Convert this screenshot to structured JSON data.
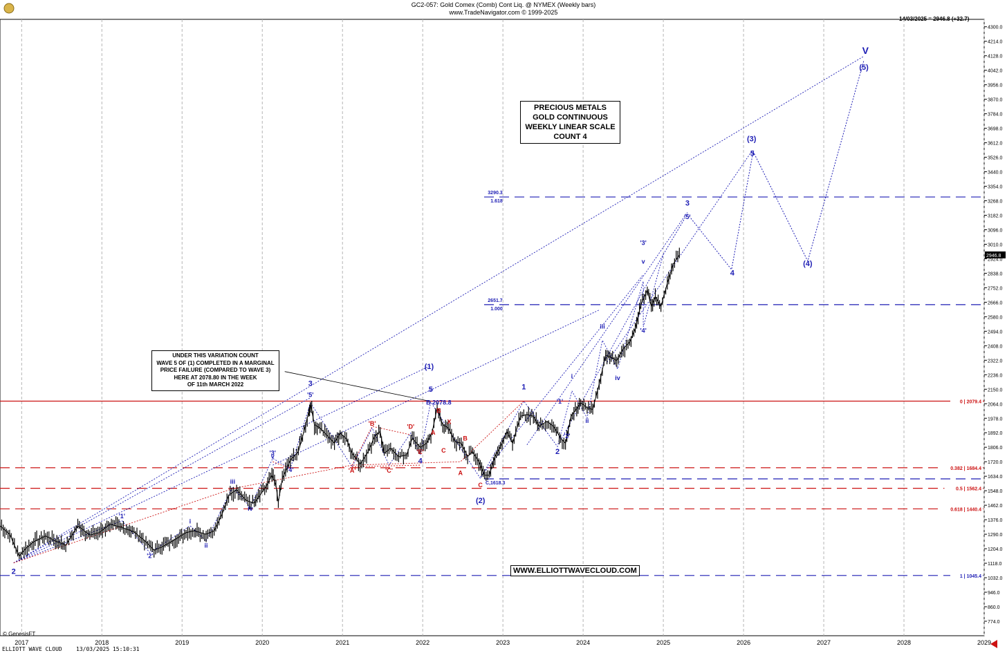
{
  "header": {
    "title": "GC2-057:  Gold Comex (Comb) Cont Liq. @ NYMEX  (Weekly bars)",
    "source": "www.TradeNavigator.com © 1999-2025",
    "last_price_note": "14/03/2025 = 2946.8 (+32.7)"
  },
  "notes": {
    "main_box": [
      "PRECIOUS METALS",
      "GOLD CONTINUOUS",
      "WEEKLY LINEAR SCALE",
      "COUNT 4"
    ],
    "variation_box": [
      "UNDER THIS VARIATION COUNT",
      "WAVE 5 OF (1) COMPLETED IN A MARGINAL",
      "PRICE FAILURE (COMPARED TO WAVE 3)",
      "HERE AT 2078.80 IN THE WEEK",
      "OF 11th MARCH 2022"
    ],
    "website": "WWW.ELLIOTTWAVECLOUD.COM"
  },
  "footer": {
    "credit": "© GenesisFT",
    "brand": "ELLIOTT WAVE CLOUD",
    "timestamp": "13/03/2025 15:10:31"
  },
  "chart_data": {
    "type": "line",
    "title": "GC2-057:  Gold Comex (Comb) Cont Liq. @ NYMEX  (Weekly bars)",
    "x_range": [
      2016.73,
      2029.0
    ],
    "y_range": [
      688.0,
      4344.0
    ],
    "x_ticks": [
      "2017",
      "2018",
      "2019",
      "2020",
      "2021",
      "2022",
      "2023",
      "2024",
      "2025",
      "2026",
      "2027",
      "2028",
      "2029"
    ],
    "y_ticks": [
      4300.0,
      4214.0,
      4128.0,
      4042.0,
      3956.0,
      3870.0,
      3784.0,
      3698.0,
      3612.0,
      3526.0,
      3440.0,
      3354.0,
      3268.0,
      3182.0,
      3096.0,
      3010.0,
      2924.0,
      2838.0,
      2752.0,
      2666.0,
      2580.0,
      2494.0,
      2408.0,
      2322.0,
      2236.0,
      2150.0,
      2064.0,
      1978.0,
      1892.0,
      1806.0,
      1720.0,
      1634.0,
      1548.0,
      1462.0,
      1376.0,
      1290.0,
      1204.0,
      1118.0,
      1032.0,
      946.0,
      860.0,
      774.0
    ],
    "colors": {
      "price": "#000000",
      "blue": "#1c1cb4",
      "red": "#cc1111",
      "grid": "#b4b4b4"
    },
    "price_series": {
      "name": "Gold weekly close (approx.)",
      "points": [
        [
          2016.73,
          1340
        ],
        [
          2016.85,
          1290
        ],
        [
          2016.97,
          1160
        ],
        [
          2017.05,
          1205
        ],
        [
          2017.15,
          1245
        ],
        [
          2017.3,
          1280
        ],
        [
          2017.42,
          1250
        ],
        [
          2017.55,
          1225
        ],
        [
          2017.7,
          1340
        ],
        [
          2017.85,
          1285
        ],
        [
          2017.97,
          1300
        ],
        [
          2018.1,
          1350
        ],
        [
          2018.25,
          1330
        ],
        [
          2018.4,
          1305
        ],
        [
          2018.55,
          1245
        ],
        [
          2018.65,
          1195
        ],
        [
          2018.75,
          1215
        ],
        [
          2018.9,
          1255
        ],
        [
          2019.05,
          1300
        ],
        [
          2019.15,
          1310
        ],
        [
          2019.3,
          1290
        ],
        [
          2019.4,
          1310
        ],
        [
          2019.5,
          1410
        ],
        [
          2019.58,
          1520
        ],
        [
          2019.68,
          1555
        ],
        [
          2019.8,
          1490
        ],
        [
          2019.9,
          1475
        ],
        [
          2019.97,
          1520
        ],
        [
          2020.05,
          1575
        ],
        [
          2020.12,
          1640
        ],
        [
          2020.17,
          1580
        ],
        [
          2020.2,
          1480
        ],
        [
          2020.25,
          1620
        ],
        [
          2020.35,
          1730
        ],
        [
          2020.45,
          1780
        ],
        [
          2020.52,
          1900
        ],
        [
          2020.58,
          2020
        ],
        [
          2020.6,
          2065
        ],
        [
          2020.65,
          1940
        ],
        [
          2020.72,
          1920
        ],
        [
          2020.8,
          1880
        ],
        [
          2020.9,
          1830
        ],
        [
          2020.97,
          1890
        ],
        [
          2021.05,
          1855
        ],
        [
          2021.12,
          1770
        ],
        [
          2021.22,
          1705
        ],
        [
          2021.32,
          1780
        ],
        [
          2021.4,
          1870
        ],
        [
          2021.47,
          1900
        ],
        [
          2021.52,
          1770
        ],
        [
          2021.6,
          1800
        ],
        [
          2021.7,
          1750
        ],
        [
          2021.8,
          1760
        ],
        [
          2021.87,
          1860
        ],
        [
          2021.97,
          1805
        ],
        [
          2022.05,
          1830
        ],
        [
          2022.12,
          1900
        ],
        [
          2022.18,
          2040
        ],
        [
          2022.25,
          1940
        ],
        [
          2022.32,
          1920
        ],
        [
          2022.4,
          1840
        ],
        [
          2022.48,
          1830
        ],
        [
          2022.56,
          1750
        ],
        [
          2022.62,
          1780
        ],
        [
          2022.7,
          1720
        ],
        [
          2022.77,
          1640
        ],
        [
          2022.83,
          1640
        ],
        [
          2022.9,
          1750
        ],
        [
          2022.97,
          1810
        ],
        [
          2023.05,
          1900
        ],
        [
          2023.12,
          1830
        ],
        [
          2023.22,
          1990
        ],
        [
          2023.3,
          2000
        ],
        [
          2023.38,
          1990
        ],
        [
          2023.45,
          1930
        ],
        [
          2023.55,
          1960
        ],
        [
          2023.63,
          1930
        ],
        [
          2023.72,
          1860
        ],
        [
          2023.78,
          1830
        ],
        [
          2023.85,
          1990
        ],
        [
          2023.92,
          2035
        ],
        [
          2023.97,
          2070
        ],
        [
          2024.05,
          2040
        ],
        [
          2024.12,
          2030
        ],
        [
          2024.2,
          2180
        ],
        [
          2024.28,
          2350
        ],
        [
          2024.35,
          2340
        ],
        [
          2024.42,
          2320
        ],
        [
          2024.5,
          2390
        ],
        [
          2024.58,
          2430
        ],
        [
          2024.65,
          2510
        ],
        [
          2024.72,
          2650
        ],
        [
          2024.8,
          2740
        ],
        [
          2024.85,
          2640
        ],
        [
          2024.9,
          2700
        ],
        [
          2024.97,
          2640
        ],
        [
          2025.05,
          2780
        ],
        [
          2025.12,
          2890
        ],
        [
          2025.2,
          2946.8
        ]
      ]
    },
    "horizontal_levels": [
      {
        "value": 2079.4,
        "label": "0 | 2079.4",
        "color": "red"
      },
      {
        "value": 1684.4,
        "label": "0.382 | 1684.4",
        "color": "red"
      },
      {
        "value": 1562.4,
        "label": "0.5 | 1562.4",
        "color": "red"
      },
      {
        "value": 1440.4,
        "label": "0.618 | 1440.4",
        "color": "red"
      },
      {
        "value": 1045.4,
        "label": "1 | 1045.4",
        "color": "blue"
      },
      {
        "value": 3290.3,
        "label": "3290.3",
        "sub": "1.618",
        "color": "blue"
      },
      {
        "value": 2651.7,
        "label": "2651.7",
        "sub": "1.000",
        "color": "blue"
      },
      {
        "value": 1618.3,
        "label": "C,1618.3",
        "color": "blue"
      }
    ],
    "current_price": "2946.8",
    "wave_labels": [
      {
        "text": "2",
        "x": 2016.9,
        "y": 1055,
        "color": "blue"
      },
      {
        "text": "'1'",
        "x": 2018.25,
        "y": 1385,
        "color": "blue"
      },
      {
        "text": "'2'",
        "x": 2018.6,
        "y": 1150,
        "color": "blue"
      },
      {
        "text": "i",
        "x": 2019.1,
        "y": 1355,
        "color": "blue"
      },
      {
        "text": "ii",
        "x": 2019.3,
        "y": 1210,
        "color": "blue"
      },
      {
        "text": "iii",
        "x": 2019.63,
        "y": 1590,
        "color": "blue"
      },
      {
        "text": "iv",
        "x": 2019.85,
        "y": 1430,
        "color": "blue"
      },
      {
        "text": "'3'",
        "x": 2020.13,
        "y": 1760,
        "color": "blue"
      },
      {
        "text": "v",
        "x": 2020.13,
        "y": 1740,
        "color": "blue"
      },
      {
        "text": "'4'",
        "x": 2020.35,
        "y": 1660,
        "color": "blue"
      },
      {
        "text": "3",
        "x": 2020.6,
        "y": 2170,
        "color": "blue"
      },
      {
        "text": "'5'",
        "x": 2020.6,
        "y": 2105,
        "color": "blue"
      },
      {
        "text": "'A'",
        "x": 2021.12,
        "y": 1655,
        "color": "red"
      },
      {
        "text": "'B'",
        "x": 2021.37,
        "y": 1935,
        "color": "red"
      },
      {
        "text": "'C'",
        "x": 2021.58,
        "y": 1655,
        "color": "red"
      },
      {
        "text": "'D'",
        "x": 2021.85,
        "y": 1915,
        "color": "red"
      },
      {
        "text": "'E'",
        "x": 2021.97,
        "y": 1765,
        "color": "red"
      },
      {
        "text": "4",
        "x": 2021.97,
        "y": 1710,
        "color": "blue"
      },
      {
        "text": "(1)",
        "x": 2022.08,
        "y": 2270,
        "color": "blue"
      },
      {
        "text": "5",
        "x": 2022.1,
        "y": 2135,
        "color": "blue"
      },
      {
        "text": "B 2078.8",
        "x": 2022.2,
        "y": 2060,
        "color": "blue"
      },
      {
        "text": "B",
        "x": 2022.2,
        "y": 2010,
        "color": "red"
      },
      {
        "text": "A",
        "x": 2022.13,
        "y": 1880,
        "color": "red"
      },
      {
        "text": "X",
        "x": 2022.33,
        "y": 1945,
        "color": "red"
      },
      {
        "text": "C",
        "x": 2022.26,
        "y": 1775,
        "color": "red"
      },
      {
        "text": "B",
        "x": 2022.53,
        "y": 1845,
        "color": "red"
      },
      {
        "text": "A",
        "x": 2022.47,
        "y": 1640,
        "color": "red"
      },
      {
        "text": "C",
        "x": 2022.72,
        "y": 1570,
        "color": "red"
      },
      {
        "text": "(2)",
        "x": 2022.72,
        "y": 1475,
        "color": "blue"
      },
      {
        "text": "1",
        "x": 2023.26,
        "y": 2150,
        "color": "blue"
      },
      {
        "text": "2",
        "x": 2023.68,
        "y": 1765,
        "color": "blue"
      },
      {
        "text": "'1'",
        "x": 2023.71,
        "y": 2065,
        "color": "blue"
      },
      {
        "text": "'2'",
        "x": 2023.8,
        "y": 1860,
        "color": "blue"
      },
      {
        "text": "i",
        "x": 2023.86,
        "y": 2215,
        "color": "blue"
      },
      {
        "text": "ii",
        "x": 2024.05,
        "y": 1950,
        "color": "blue"
      },
      {
        "text": "iii",
        "x": 2024.24,
        "y": 2510,
        "color": "blue"
      },
      {
        "text": "iv",
        "x": 2024.43,
        "y": 2205,
        "color": "blue"
      },
      {
        "text": "'3'",
        "x": 2024.75,
        "y": 3005,
        "color": "blue"
      },
      {
        "text": "v",
        "x": 2024.75,
        "y": 2895,
        "color": "blue"
      },
      {
        "text": "'4'",
        "x": 2024.75,
        "y": 2485,
        "color": "blue"
      },
      {
        "text": "3",
        "x": 2025.3,
        "y": 3240,
        "color": "blue"
      },
      {
        "text": "'5'",
        "x": 2025.3,
        "y": 3160,
        "color": "blue"
      },
      {
        "text": "4",
        "x": 2025.86,
        "y": 2825,
        "color": "blue"
      },
      {
        "text": "(3)",
        "x": 2026.1,
        "y": 3620,
        "color": "blue"
      },
      {
        "text": "5",
        "x": 2026.11,
        "y": 3535,
        "color": "blue"
      },
      {
        "text": "(4)",
        "x": 2026.8,
        "y": 2880,
        "color": "blue"
      },
      {
        "text": "(5)",
        "x": 2027.5,
        "y": 4045,
        "color": "blue"
      },
      {
        "text": "V",
        "x": 2027.52,
        "y": 4140,
        "color": "blue"
      }
    ],
    "projection_path": [
      [
        2025.0,
        2950
      ],
      [
        2025.3,
        3190
      ],
      [
        2025.85,
        2860
      ],
      [
        2026.12,
        3560
      ],
      [
        2026.8,
        2910
      ],
      [
        2027.5,
        4100
      ]
    ],
    "wave_paths": [
      {
        "color": "blue",
        "points": [
          [
            2016.9,
            1120
          ],
          [
            2018.25,
            1370
          ],
          [
            2018.6,
            1180
          ],
          [
            2019.1,
            1340
          ],
          [
            2019.3,
            1250
          ],
          [
            2019.63,
            1570
          ],
          [
            2019.85,
            1450
          ],
          [
            2020.13,
            1740
          ],
          [
            2020.35,
            1680
          ],
          [
            2020.6,
            2070
          ],
          [
            2021.12,
            1690
          ],
          [
            2021.37,
            1920
          ],
          [
            2021.58,
            1700
          ],
          [
            2021.85,
            1890
          ],
          [
            2021.97,
            1760
          ],
          [
            2022.1,
            2075
          ],
          [
            2022.72,
            1620
          ],
          [
            2023.26,
            2080
          ],
          [
            2023.68,
            1810
          ],
          [
            2023.86,
            2140
          ],
          [
            2024.05,
            1980
          ],
          [
            2024.24,
            2440
          ],
          [
            2024.43,
            2270
          ],
          [
            2024.75,
            2790
          ],
          [
            2024.75,
            2520
          ],
          [
            2025.0,
            2950
          ]
        ]
      },
      {
        "color": "blue",
        "points": [
          [
            2016.9,
            1120
          ],
          [
            2022.1,
            2290
          ]
        ]
      },
      {
        "color": "blue",
        "points": [
          [
            2016.9,
            1120
          ],
          [
            2027.5,
            4125
          ]
        ]
      },
      {
        "color": "blue",
        "points": [
          [
            2016.9,
            1120
          ],
          [
            2020.6,
            2100
          ]
        ]
      },
      {
        "color": "blue",
        "points": [
          [
            2020.13,
            1700
          ],
          [
            2024.2,
            2620
          ]
        ]
      },
      {
        "color": "blue",
        "points": [
          [
            2023.3,
            1820
          ],
          [
            2025.3,
            3200
          ]
        ]
      },
      {
        "color": "blue",
        "points": [
          [
            2024.3,
            2310
          ],
          [
            2026.1,
            3560
          ]
        ]
      },
      {
        "color": "blue",
        "points": [
          [
            2022.72,
            1630
          ],
          [
            2024.75,
            2830
          ]
        ]
      },
      {
        "color": "blue",
        "points": [
          [
            2023.7,
            1830
          ],
          [
            2025.0,
            2950
          ]
        ]
      },
      {
        "color": "red",
        "points": [
          [
            2016.9,
            1120
          ],
          [
            2019.63,
            1560
          ],
          [
            2021.12,
            1700
          ],
          [
            2022.47,
            1720
          ],
          [
            2023.26,
            2080
          ]
        ]
      },
      {
        "color": "red",
        "points": [
          [
            2021.12,
            1700
          ],
          [
            2021.37,
            1930
          ],
          [
            2021.85,
            1880
          ]
        ]
      },
      {
        "color": "red",
        "points": [
          [
            2021.12,
            1690
          ],
          [
            2021.97,
            1700
          ]
        ]
      },
      {
        "color": "red",
        "points": [
          [
            2020.13,
            1720
          ],
          [
            2020.35,
            1680
          ]
        ]
      },
      {
        "color": "black",
        "points": [
          [
            2020.28,
            2255
          ],
          [
            2022.1,
            2078
          ]
        ]
      }
    ]
  }
}
